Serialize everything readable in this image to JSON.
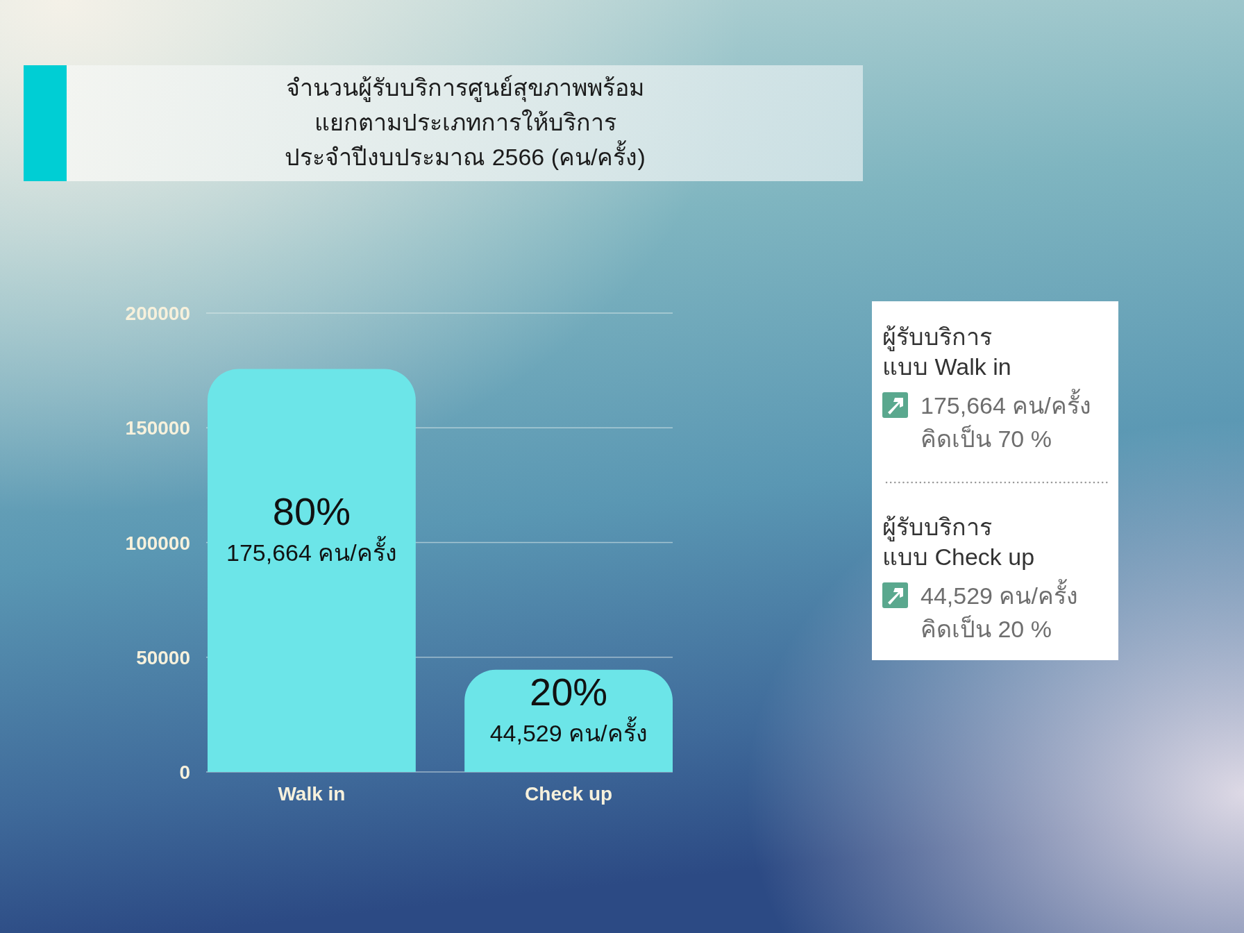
{
  "chart_data": [
    {
      "type": "bar",
      "title": "จำนวนผู้รับบริการศูนย์สุขภาพพร้อม\nแยกตามประเภทการให้บริการ\nประจำปีงบประมาณ 2566 (คน/ครั้ง)",
      "categories": [
        "Walk in",
        "Check up"
      ],
      "values": [
        175664,
        44529
      ],
      "color": "#6ce5e8",
      "ylim": [
        0,
        200000
      ],
      "yticks": [
        0,
        50000,
        100000,
        150000,
        200000
      ],
      "grid": "y",
      "value_labels": [
        "80%\n175,664 คน/ครั้ง",
        "20%\n44,529 คน/ครั้ง"
      ]
    },
    {
      "type": "other",
      "annotations": [
        "ผู้รับบริการ\nแบบ Walk in",
        "175,664 คน/ครั้ง",
        "คิดเป็น 70 %",
        "ผู้รับบริการ\nแบบ Check up",
        "44,529 คน/ครั้ง",
        "คิดเป็น 20 %"
      ]
    }
  ]
}
